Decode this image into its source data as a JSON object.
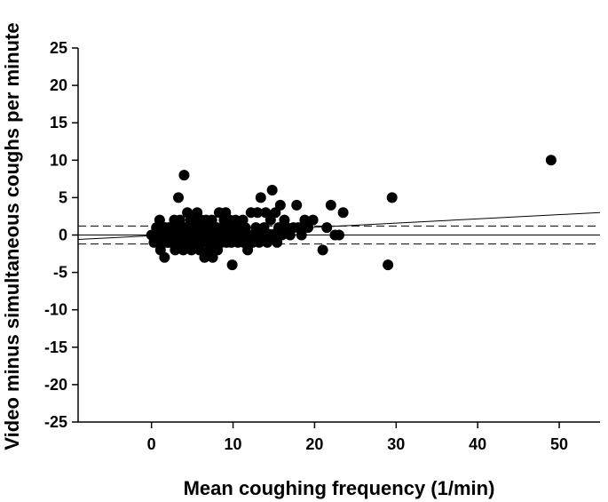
{
  "chart_data": {
    "type": "scatter",
    "title": "",
    "xlabel": "Mean coughing frequency (1/min)",
    "ylabel": "Video minus simultaneous coughs per minute",
    "xlim": [
      -9,
      55
    ],
    "ylim": [
      -25,
      25
    ],
    "xticks": [
      0,
      10,
      20,
      30,
      40,
      50
    ],
    "yticks": [
      -25,
      -20,
      -15,
      -10,
      -5,
      0,
      5,
      10,
      15,
      20,
      25
    ],
    "grid": false,
    "legend": "none",
    "marker_color": "#000000",
    "points": [
      [
        0,
        0
      ],
      [
        0.3,
        -1
      ],
      [
        0.5,
        0
      ],
      [
        0.6,
        1
      ],
      [
        0.8,
        0
      ],
      [
        0.9,
        -1
      ],
      [
        1.0,
        2
      ],
      [
        1.1,
        -2
      ],
      [
        1.2,
        0
      ],
      [
        1.3,
        1
      ],
      [
        1.4,
        -1
      ],
      [
        1.5,
        0
      ],
      [
        1.6,
        -3
      ],
      [
        1.7,
        1
      ],
      [
        1.8,
        0
      ],
      [
        1.9,
        -1
      ],
      [
        2.0,
        0
      ],
      [
        2.1,
        1
      ],
      [
        2.2,
        -1
      ],
      [
        2.3,
        0
      ],
      [
        2.4,
        1
      ],
      [
        2.5,
        0
      ],
      [
        2.6,
        -1
      ],
      [
        2.7,
        0
      ],
      [
        2.8,
        2
      ],
      [
        2.9,
        -2
      ],
      [
        3.0,
        1
      ],
      [
        3.1,
        0
      ],
      [
        3.2,
        -1
      ],
      [
        3.3,
        5
      ],
      [
        3.4,
        0
      ],
      [
        3.5,
        2
      ],
      [
        3.6,
        -1
      ],
      [
        3.7,
        1
      ],
      [
        3.8,
        0
      ],
      [
        3.9,
        -2
      ],
      [
        4.0,
        8
      ],
      [
        4.1,
        1
      ],
      [
        4.2,
        -1
      ],
      [
        4.3,
        0
      ],
      [
        4.4,
        3
      ],
      [
        4.5,
        1
      ],
      [
        4.6,
        -1
      ],
      [
        4.7,
        0
      ],
      [
        4.8,
        2
      ],
      [
        4.9,
        -2
      ],
      [
        5.0,
        0
      ],
      [
        5.1,
        1
      ],
      [
        5.2,
        -1
      ],
      [
        5.3,
        0
      ],
      [
        5.4,
        2
      ],
      [
        5.5,
        -1
      ],
      [
        5.6,
        3
      ],
      [
        5.7,
        0
      ],
      [
        5.8,
        1
      ],
      [
        5.9,
        -2
      ],
      [
        6.0,
        0
      ],
      [
        6.1,
        2
      ],
      [
        6.2,
        -1
      ],
      [
        6.3,
        0
      ],
      [
        6.4,
        1
      ],
      [
        6.5,
        -3
      ],
      [
        6.6,
        0
      ],
      [
        6.7,
        2
      ],
      [
        6.8,
        -1
      ],
      [
        6.9,
        1
      ],
      [
        7.0,
        0
      ],
      [
        7.1,
        -2
      ],
      [
        7.2,
        1
      ],
      [
        7.3,
        0
      ],
      [
        7.4,
        2
      ],
      [
        7.5,
        -3
      ],
      [
        7.6,
        0
      ],
      [
        7.7,
        1
      ],
      [
        7.8,
        -1
      ],
      [
        7.9,
        0
      ],
      [
        8.0,
        1
      ],
      [
        8.1,
        -2
      ],
      [
        8.2,
        0
      ],
      [
        8.3,
        3
      ],
      [
        8.5,
        0
      ],
      [
        8.6,
        -1
      ],
      [
        8.8,
        1
      ],
      [
        8.9,
        2
      ],
      [
        9.0,
        0
      ],
      [
        9.1,
        3
      ],
      [
        9.2,
        -1
      ],
      [
        9.3,
        1
      ],
      [
        9.5,
        0
      ],
      [
        9.6,
        2
      ],
      [
        9.7,
        0
      ],
      [
        9.8,
        -1
      ],
      [
        9.9,
        -4
      ],
      [
        10.0,
        1
      ],
      [
        10.2,
        0
      ],
      [
        10.3,
        2
      ],
      [
        10.5,
        0
      ],
      [
        10.6,
        -1
      ],
      [
        10.8,
        1
      ],
      [
        11.0,
        0
      ],
      [
        11.2,
        2
      ],
      [
        11.3,
        -1
      ],
      [
        11.5,
        1
      ],
      [
        11.7,
        0
      ],
      [
        11.8,
        -2
      ],
      [
        12.0,
        0
      ],
      [
        12.2,
        3
      ],
      [
        12.4,
        -1
      ],
      [
        12.6,
        0
      ],
      [
        12.8,
        1
      ],
      [
        13.0,
        3
      ],
      [
        13.2,
        -1
      ],
      [
        13.4,
        5
      ],
      [
        13.6,
        0
      ],
      [
        13.8,
        1
      ],
      [
        14.0,
        3
      ],
      [
        14.2,
        -1
      ],
      [
        14.4,
        0
      ],
      [
        14.6,
        2
      ],
      [
        14.8,
        6
      ],
      [
        15.0,
        0
      ],
      [
        15.2,
        3
      ],
      [
        15.4,
        -1
      ],
      [
        15.6,
        1
      ],
      [
        15.8,
        4
      ],
      [
        16.0,
        0
      ],
      [
        16.3,
        2
      ],
      [
        16.6,
        1
      ],
      [
        17.0,
        0
      ],
      [
        17.4,
        1
      ],
      [
        17.8,
        4
      ],
      [
        18.0,
        1
      ],
      [
        18.4,
        0
      ],
      [
        18.8,
        2
      ],
      [
        19.2,
        1
      ],
      [
        19.8,
        2
      ],
      [
        21.0,
        -2
      ],
      [
        21.5,
        1
      ],
      [
        22.0,
        4
      ],
      [
        22.5,
        0
      ],
      [
        23.0,
        0
      ],
      [
        23.5,
        3
      ],
      [
        29.0,
        -4
      ],
      [
        29.5,
        5
      ],
      [
        49.0,
        10
      ]
    ],
    "reference_lines": [
      {
        "kind": "regression",
        "style": "solid",
        "x": [
          -9,
          55
        ],
        "y": [
          -0.6,
          3.0
        ]
      },
      {
        "kind": "mean",
        "style": "solid",
        "x": [
          -9,
          55
        ],
        "y": [
          0,
          0
        ]
      },
      {
        "kind": "upper-limit",
        "style": "dashed",
        "x": [
          -9,
          55
        ],
        "y": [
          1.2,
          1.2
        ]
      },
      {
        "kind": "lower-limit",
        "style": "dashed",
        "x": [
          -9,
          55
        ],
        "y": [
          -1.2,
          -1.2
        ]
      }
    ]
  }
}
